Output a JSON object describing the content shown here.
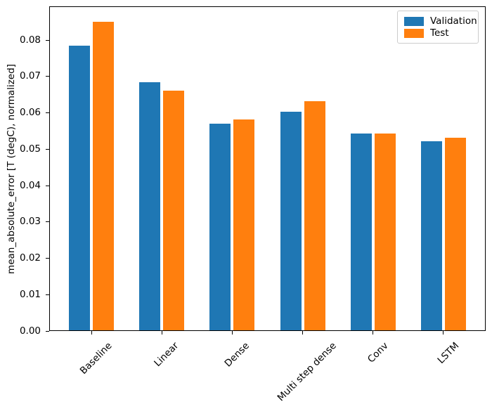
{
  "chart_data": {
    "type": "bar",
    "title": "",
    "xlabel": "",
    "ylabel": "mean_absolute_error [T (degC), normalized]",
    "categories": [
      "Baseline",
      "Linear",
      "Dense",
      "Multi step dense",
      "Conv",
      "LSTM"
    ],
    "series": [
      {
        "name": "Validation",
        "color": "#1f77b4",
        "values": [
          0.0784,
          0.0685,
          0.0571,
          0.0603,
          0.0544,
          0.0522
        ]
      },
      {
        "name": "Test",
        "color": "#ff7f0e",
        "values": [
          0.0851,
          0.0662,
          0.0582,
          0.0632,
          0.0543,
          0.0532
        ]
      }
    ],
    "ylim": [
      0,
      0.0893
    ],
    "xlim": [
      -0.6,
      5.6
    ],
    "yticks": [
      0,
      0.01,
      0.02,
      0.03,
      0.04,
      0.05,
      0.06,
      0.07,
      0.08
    ],
    "ytick_labels": [
      "0.00",
      "0.01",
      "0.02",
      "0.03",
      "0.04",
      "0.05",
      "0.06",
      "0.07",
      "0.08"
    ],
    "xtick_rotation_deg": 45,
    "bar_width": 0.3,
    "bar_offsets": [
      -0.17,
      0.17
    ],
    "grid": false,
    "legend": {
      "location": "upper right",
      "entries": [
        "Validation",
        "Test"
      ]
    },
    "axis_color": "#000000",
    "background": "#ffffff"
  }
}
